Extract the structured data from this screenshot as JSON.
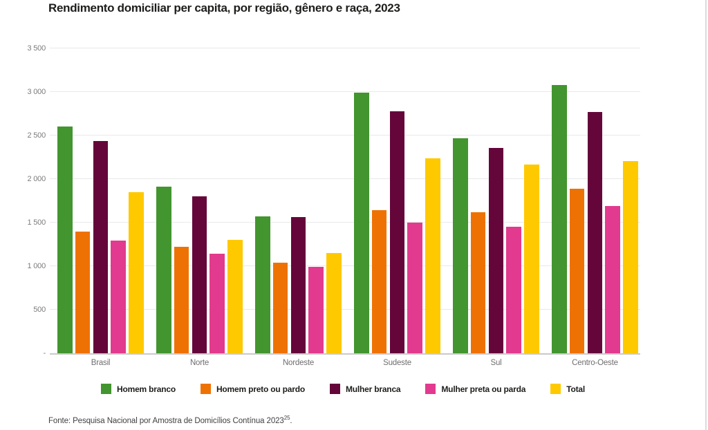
{
  "title": "Rendimento domiciliar per capita, por região, gênero e raça, 2023",
  "chart_data": {
    "type": "bar",
    "title": "Rendimento domiciliar per capita, por região, gênero e raça, 2023",
    "categories": [
      "Brasil",
      "Norte",
      "Nordeste",
      "Sudeste",
      "Sul",
      "Centro-Oeste"
    ],
    "series": [
      {
        "name": "Homem branco",
        "color": "#43952f",
        "values": [
          2600,
          1910,
          1570,
          2990,
          2470,
          3080
        ]
      },
      {
        "name": "Homem preto ou pardo",
        "color": "#ee7203",
        "values": [
          1400,
          1220,
          1040,
          1640,
          1620,
          1890
        ]
      },
      {
        "name": "Mulher branca",
        "color": "#65063a",
        "values": [
          2440,
          1800,
          1560,
          2780,
          2360,
          2770
        ]
      },
      {
        "name": "Mulher preta ou parda",
        "color": "#e23a8e",
        "values": [
          1290,
          1140,
          990,
          1500,
          1450,
          1690
        ]
      },
      {
        "name": "Total",
        "color": "#ffc900",
        "values": [
          1850,
          1300,
          1150,
          2240,
          2170,
          2210
        ]
      }
    ],
    "y_ticks": [
      {
        "label": "3 500",
        "value": 3500
      },
      {
        "label": "3 000",
        "value": 3000
      },
      {
        "label": "2 500",
        "value": 2500
      },
      {
        "label": "2 000",
        "value": 2000
      },
      {
        "label": "1 500",
        "value": 1500
      },
      {
        "label": "1 000",
        "value": 1000
      },
      {
        "label": "500",
        "value": 500
      },
      {
        "label": "-",
        "value": 0
      }
    ],
    "ylim": [
      0,
      3500
    ],
    "xlabel": "",
    "ylabel": "",
    "grid": true,
    "legend_position": "bottom"
  },
  "footer": {
    "text": "Fonte: Pesquisa Nacional por Amostra de Domicílios Contínua 2023",
    "superscript": "25",
    "suffix": "."
  },
  "colors": {
    "gridline": "#e9e9e9",
    "baseline": "#c9c9c9",
    "tick_text": "#7c7c7c",
    "title_text": "#1d1d1b",
    "page_edge": "#dbdbdb"
  }
}
